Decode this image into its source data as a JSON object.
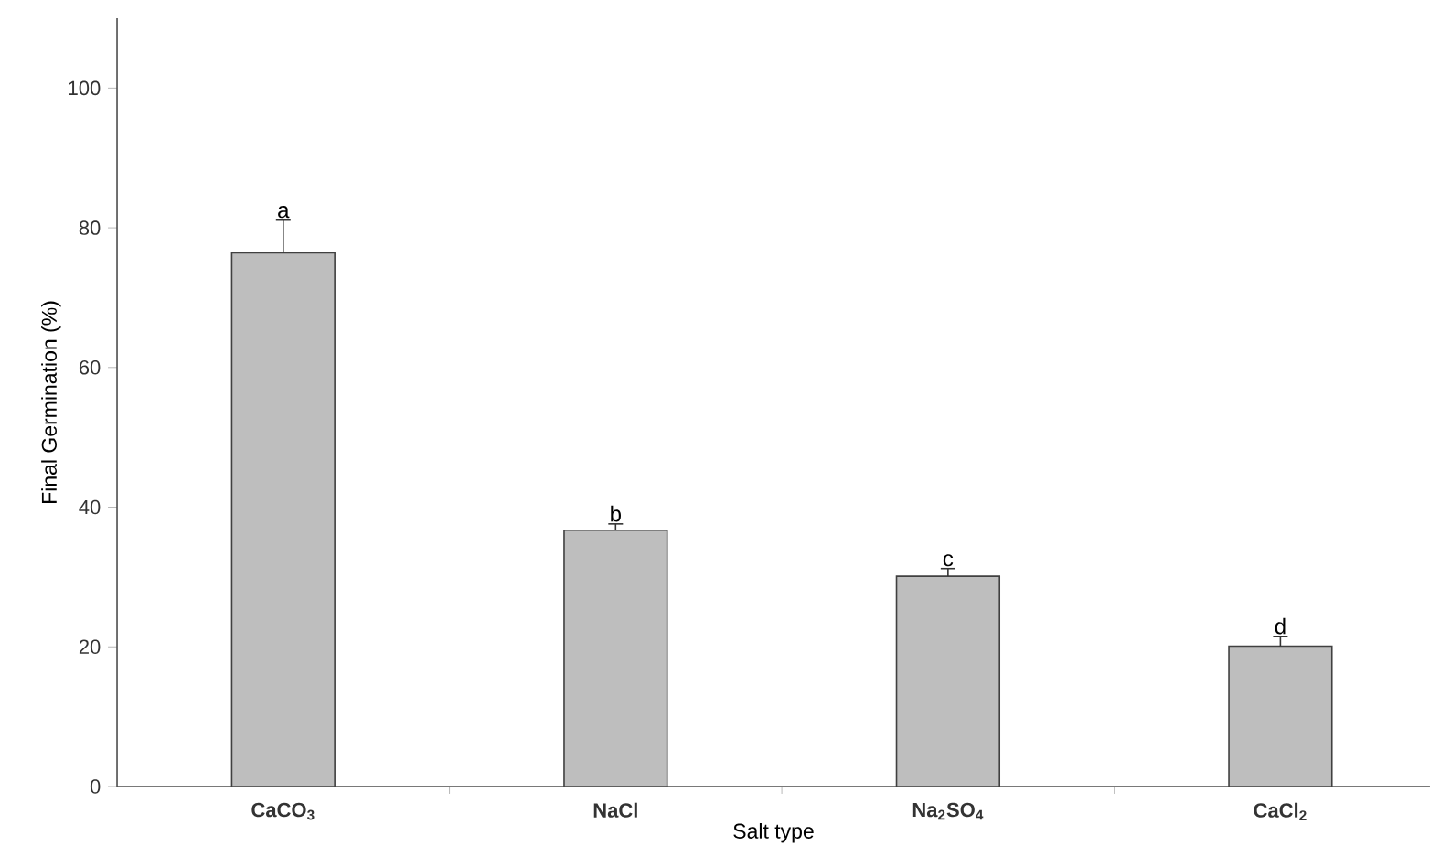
{
  "chart_data": {
    "type": "bar",
    "xlabel": "Salt type",
    "ylabel": "Final Germination (%)",
    "categories": [
      "CaCO$_{3}$",
      "NaCl",
      "Na$_{2}$SO$_{4}$",
      "CaCl$_{2}$"
    ],
    "values": [
      76.4,
      36.7,
      30.1,
      20.1
    ],
    "color": "#bebebe",
    "errors": [
      [
        76.4,
        81.1
      ],
      [
        36.7,
        37.6
      ],
      [
        30.1,
        31.2
      ],
      [
        20.1,
        21.5
      ]
    ],
    "ylim": [
      0,
      110
    ],
    "yticks": [
      0,
      20,
      40,
      60,
      80,
      100
    ],
    "annotations": [
      "a",
      "b",
      "c",
      "d"
    ]
  }
}
